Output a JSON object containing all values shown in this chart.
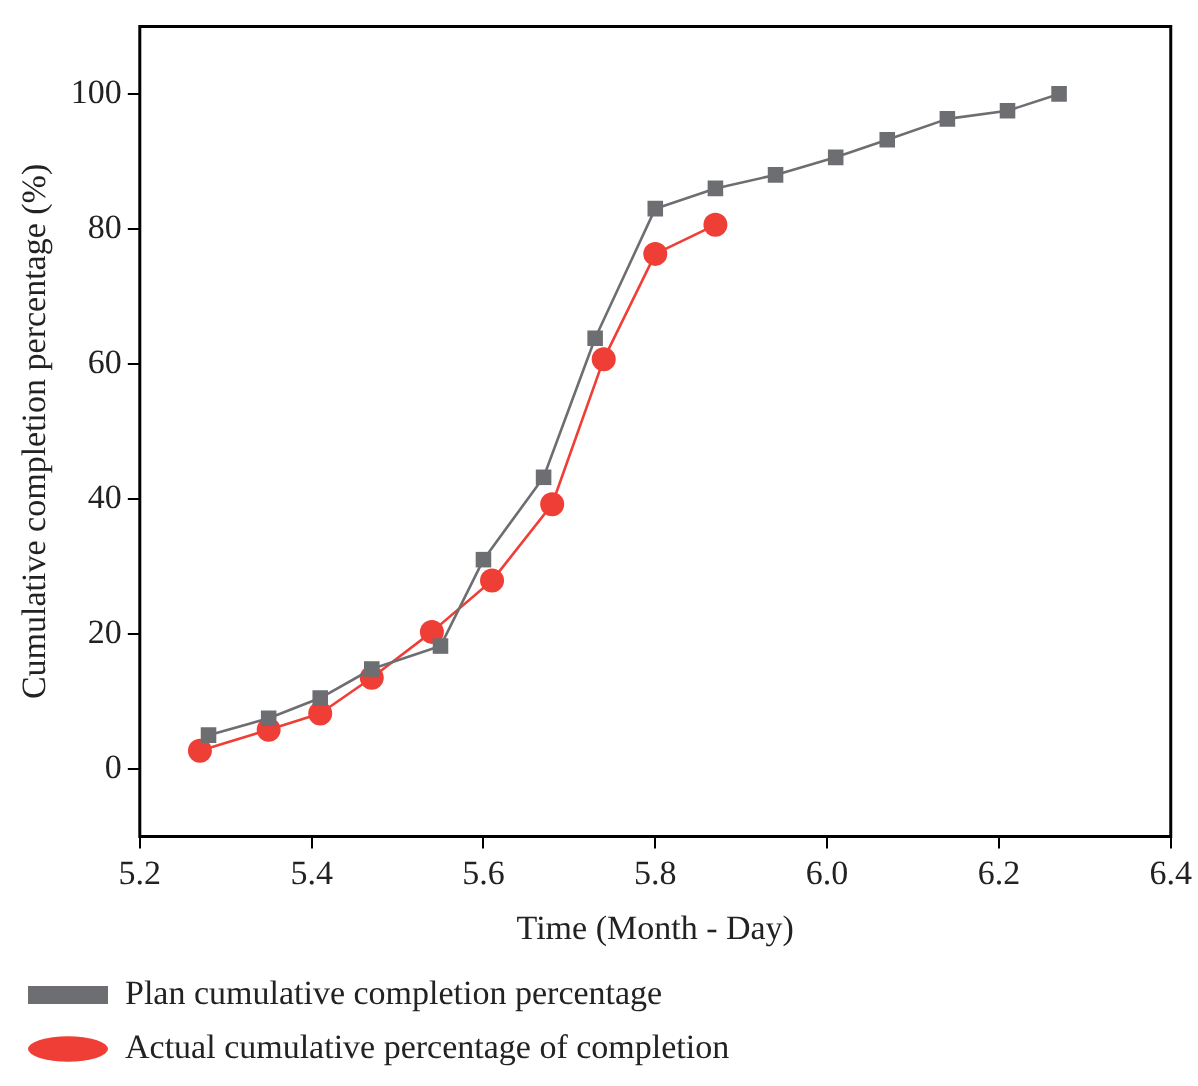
{
  "chart_data": {
    "type": "line",
    "xlabel": "Time (Month - Day)",
    "ylabel": "Cumulative completion percentage (%)",
    "xlim": [
      5.2,
      6.4
    ],
    "xticks": [
      {
        "value": 5.2,
        "label": "5.2"
      },
      {
        "value": 5.4,
        "label": "5.4"
      },
      {
        "value": 5.6,
        "label": "5.6"
      },
      {
        "value": 5.8,
        "label": "5.8"
      },
      {
        "value": 6.0,
        "label": "6.0"
      },
      {
        "value": 6.2,
        "label": "6.2"
      },
      {
        "value": 6.4,
        "label": "6.4"
      }
    ],
    "ylim": [
      -10,
      110
    ],
    "yticks": [
      0,
      20,
      40,
      60,
      80,
      100
    ],
    "grid": false,
    "legend": "bottom",
    "line_style": "solid",
    "series": [
      {
        "name": "Plan cumulative completion percentage",
        "color": "#6d6e71",
        "marker": "square",
        "x": [
          5.28,
          5.35,
          5.41,
          5.47,
          5.55,
          5.6,
          5.67,
          5.73,
          5.8,
          5.87,
          5.94,
          6.01,
          6.07,
          6.14,
          6.21,
          6.27
        ],
        "values": [
          5,
          7.5,
          10.5,
          14.8,
          18.2,
          31,
          43.2,
          63.8,
          83,
          86,
          88,
          90.6,
          93.2,
          96.3,
          97.5,
          100
        ]
      },
      {
        "name": "Actual cumulative percentage of completion",
        "color": "#ef3e36",
        "marker": "circle",
        "x": [
          5.27,
          5.35,
          5.41,
          5.47,
          5.54,
          5.61,
          5.68,
          5.74,
          5.8,
          5.87
        ],
        "values": [
          2.7,
          5.8,
          8.2,
          13.5,
          20.3,
          27.9,
          39.2,
          60.7,
          76.3,
          80.6
        ]
      }
    ]
  }
}
